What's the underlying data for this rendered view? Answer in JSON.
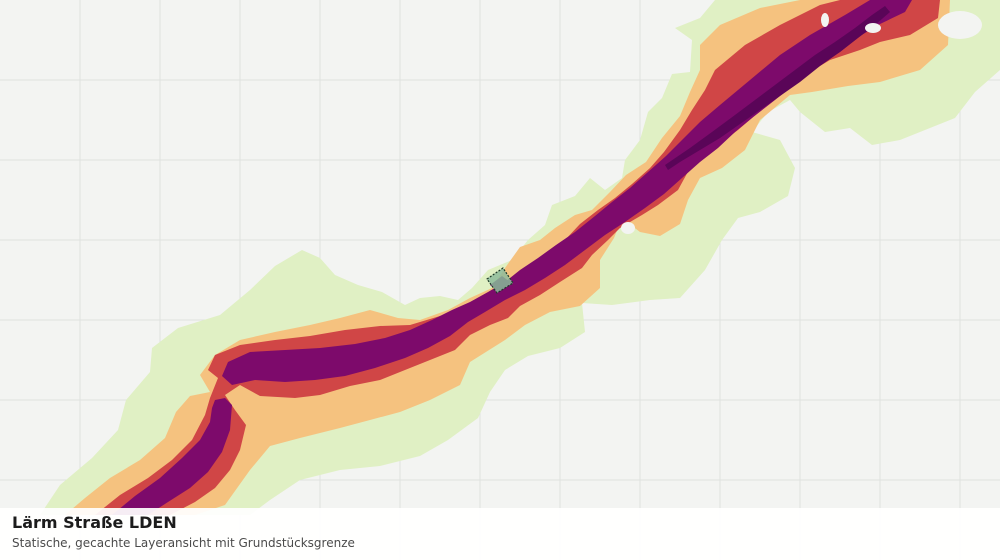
{
  "map": {
    "layer_title": "Lärm Straße LDEN",
    "layer_subtitle": "Statische, gecachte Layeransicht mit Grundstücksgrenze",
    "colors": {
      "background": "#f3f4f2",
      "grid": "#dfe2df",
      "zone_1": "#e0f0c4",
      "zone_2": "#f5c27f",
      "zone_3": "#d04646",
      "zone_4": "#7d0a6b",
      "zone_5": "#5a0558",
      "parcel_fill": "#8dbb9b",
      "parcel_outline": "#1f3b2a"
    }
  }
}
